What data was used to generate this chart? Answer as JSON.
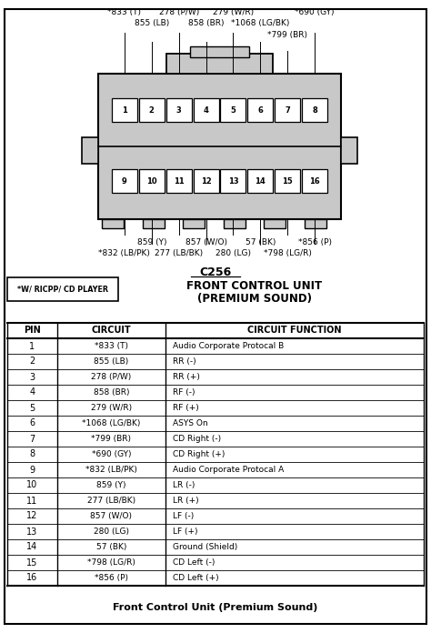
{
  "title_connector": "C256",
  "title_unit": "FRONT CONTROL UNIT",
  "title_sound": "(PREMIUM SOUND)",
  "label_ricpp": "*W/ RICPP/ CD PLAYER",
  "footer": "Front Control Unit (Premium Sound)",
  "table_data": [
    [
      "1",
      "*833 (T)",
      "Audio Corporate Protocal B"
    ],
    [
      "2",
      "855 (LB)",
      "RR (-)"
    ],
    [
      "3",
      "278 (P/W)",
      "RR (+)"
    ],
    [
      "4",
      "858 (BR)",
      "RF (-)"
    ],
    [
      "5",
      "279 (W/R)",
      "RF (+)"
    ],
    [
      "6",
      "*1068 (LG/BK)",
      "ASYS On"
    ],
    [
      "7",
      "*799 (BR)",
      "CD Right (-)"
    ],
    [
      "8",
      "*690 (GY)",
      "CD Right (+)"
    ],
    [
      "9",
      "*832 (LB/PK)",
      "Audio Corporate Protocal A"
    ],
    [
      "10",
      "859 (Y)",
      "LR (-)"
    ],
    [
      "11",
      "277 (LB/BK)",
      "LR (+)"
    ],
    [
      "12",
      "857 (W/O)",
      "LF (-)"
    ],
    [
      "13",
      "280 (LG)",
      "LF (+)"
    ],
    [
      "14",
      "57 (BK)",
      "Ground (Shield)"
    ],
    [
      "15",
      "*798 (LG/R)",
      "CD Left (-)"
    ],
    [
      "16",
      "*856 (P)",
      "CD Left (+)"
    ]
  ],
  "col_headers": [
    "PIN",
    "CIRCUIT",
    "CIRCUIT FUNCTION"
  ],
  "bg_color": "#ffffff"
}
